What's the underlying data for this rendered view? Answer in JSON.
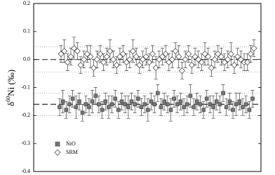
{
  "chart_data": {
    "type": "scatter",
    "ylabel": {
      "symbol": "δ",
      "sup": "60",
      "main": "Ni (‰)"
    },
    "ylim": [
      -0.4,
      0.2
    ],
    "yticks": [
      0.2,
      0.1,
      {
        "value": 0,
        "label": "0.0"
      },
      -0.1,
      -0.2,
      -0.3,
      -0.4
    ],
    "reference_lines": [
      {
        "value": 0,
        "style": "dashed"
      },
      {
        "value": -0.16,
        "style": "dashed"
      },
      {
        "value": 0.045,
        "style": "dotted"
      },
      {
        "value": -0.045,
        "style": "dotted"
      },
      {
        "value": -0.12,
        "style": "dotted"
      },
      {
        "value": -0.2,
        "style": "dotted"
      }
    ],
    "legend": "lower left",
    "series": [
      {
        "name": "NiO",
        "color": "#777777",
        "marker": "square",
        "values": [
          -0.17,
          -0.15,
          -0.18,
          -0.16,
          -0.14,
          -0.17,
          -0.15,
          -0.19,
          -0.16,
          -0.17,
          -0.15,
          -0.13,
          -0.16,
          -0.18,
          -0.15,
          -0.17,
          -0.16,
          -0.14,
          -0.18,
          -0.15,
          -0.16,
          -0.17,
          -0.15,
          -0.16,
          -0.14,
          -0.17,
          -0.16,
          -0.18,
          -0.15,
          -0.16,
          -0.12,
          -0.17,
          -0.15,
          -0.16,
          -0.18,
          -0.14,
          -0.16,
          -0.15,
          -0.17,
          -0.16,
          -0.13,
          -0.17,
          -0.15,
          -0.16,
          -0.18,
          -0.14,
          -0.16,
          -0.17,
          -0.15,
          -0.16,
          -0.12,
          -0.17,
          -0.15,
          -0.18,
          -0.16,
          -0.15,
          -0.17,
          -0.16,
          -0.18,
          -0.14
        ],
        "errors": [
          0.03,
          0.04,
          0.03,
          0.03,
          0.03,
          0.04,
          0.03,
          0.03,
          0.03,
          0.03,
          0.04,
          0.03,
          0.03,
          0.03,
          0.03,
          0.04,
          0.03,
          0.03,
          0.03,
          0.03,
          0.03,
          0.04,
          0.03,
          0.03,
          0.03,
          0.03,
          0.03,
          0.04,
          0.03,
          0.03,
          0.03,
          0.03,
          0.03,
          0.03,
          0.04,
          0.03,
          0.03,
          0.03,
          0.03,
          0.03,
          0.04,
          0.03,
          0.03,
          0.03,
          0.03,
          0.03,
          0.03,
          0.04,
          0.03,
          0.03,
          0.03,
          0.03,
          0.03,
          0.03,
          0.04,
          0.03,
          0.03,
          0.03,
          0.03,
          0.03
        ]
      },
      {
        "name": "SRM",
        "color": "#ffffff",
        "marker": "diamond",
        "values": [
          0.02,
          0.03,
          -0.01,
          0.01,
          0.04,
          0.03,
          -0.02,
          0.0,
          0.02,
          0.01,
          -0.03,
          0.0,
          0.02,
          -0.01,
          0.01,
          0.03,
          0.0,
          -0.02,
          0.01,
          0.02,
          -0.01,
          0.0,
          0.03,
          0.01,
          -0.02,
          0.0,
          0.01,
          -0.01,
          0.02,
          -0.03,
          0.0,
          0.01,
          0.02,
          -0.01,
          0.0,
          0.03,
          0.01,
          -0.04,
          0.0,
          0.02,
          -0.02,
          0.01,
          0.0,
          -0.01,
          0.02,
          0.01,
          -0.03,
          0.0,
          0.02,
          0.01,
          -0.01,
          0.0,
          0.02,
          -0.02,
          0.01,
          0.0,
          -0.01,
          -0.01,
          0.02,
          0.04
        ],
        "errors": [
          0.03,
          0.04,
          0.03,
          0.03,
          0.04,
          0.03,
          0.03,
          0.03,
          0.03,
          0.04,
          0.03,
          0.03,
          0.03,
          0.03,
          0.03,
          0.04,
          0.03,
          0.03,
          0.03,
          0.03,
          0.03,
          0.03,
          0.04,
          0.03,
          0.03,
          0.03,
          0.03,
          0.03,
          0.03,
          0.04,
          0.03,
          0.03,
          0.03,
          0.03,
          0.03,
          0.03,
          0.04,
          0.03,
          0.03,
          0.03,
          0.03,
          0.03,
          0.03,
          0.03,
          0.04,
          0.03,
          0.03,
          0.03,
          0.03,
          0.03,
          0.03,
          0.03,
          0.04,
          0.03,
          0.03,
          0.03,
          0.03,
          0.03,
          0.03,
          0.03
        ]
      }
    ]
  }
}
